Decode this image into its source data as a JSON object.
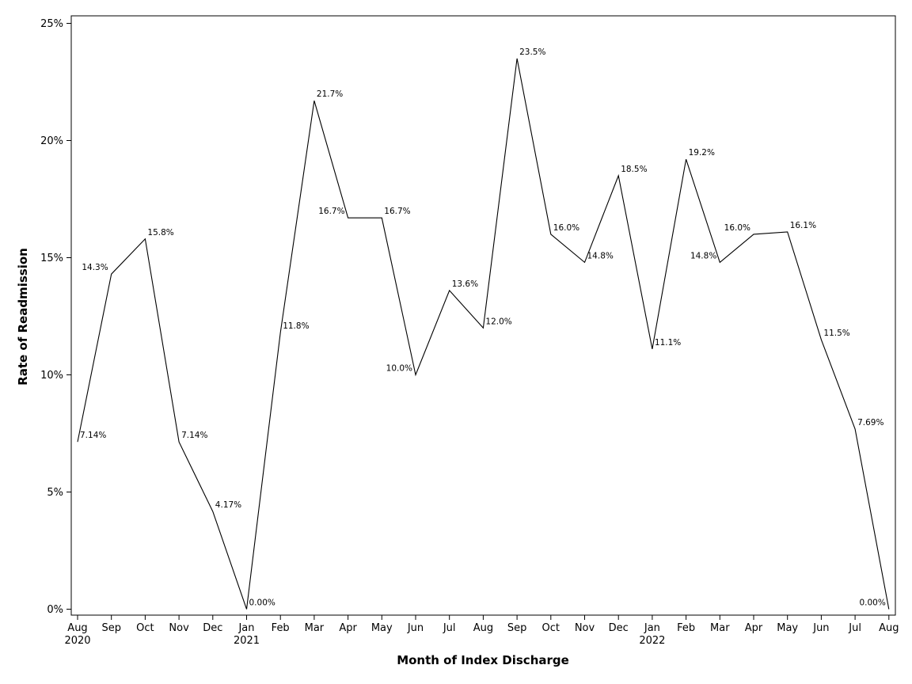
{
  "chart_data": {
    "type": "line",
    "xlabel": "Month of Index Discharge",
    "ylabel": "Rate of Readmission",
    "ylim": [
      0,
      25
    ],
    "y_ticks": [
      0,
      5,
      10,
      15,
      20,
      25
    ],
    "y_tick_labels": [
      "0%",
      "5%",
      "10%",
      "15%",
      "20%",
      "25%"
    ],
    "grid": false,
    "legend": "none",
    "line_color": "#000000",
    "categories": [
      "Aug 2020",
      "Sep 2020",
      "Oct 2020",
      "Nov 2020",
      "Dec 2020",
      "Jan 2021",
      "Feb 2021",
      "Mar 2021",
      "Apr 2021",
      "May 2021",
      "Jun 2021",
      "Jul 2021",
      "Aug 2021",
      "Sep 2021",
      "Oct 2021",
      "Nov 2021",
      "Dec 2021",
      "Jan 2022",
      "Feb 2022",
      "Mar 2022",
      "Apr 2022",
      "May 2022",
      "Jun 2022",
      "Jul 2022",
      "Aug 2022"
    ],
    "tick_month_labels": [
      "Aug",
      "Sep",
      "Oct",
      "Nov",
      "Dec",
      "Jan",
      "Feb",
      "Mar",
      "Apr",
      "May",
      "Jun",
      "Jul",
      "Aug",
      "Sep",
      "Oct",
      "Nov",
      "Dec",
      "Jan",
      "Feb",
      "Mar",
      "Apr",
      "May",
      "Jun",
      "Jul",
      "Aug"
    ],
    "tick_year_labels": [
      "2020",
      "",
      "",
      "",
      "",
      "2021",
      "",
      "",
      "",
      "",
      "",
      "",
      "",
      "",
      "",
      "",
      "",
      "2022",
      "",
      "",
      "",
      "",
      "",
      "",
      ""
    ],
    "values": [
      7.14,
      14.3,
      15.8,
      7.14,
      4.17,
      0.0,
      11.8,
      21.7,
      16.7,
      16.7,
      10.0,
      13.6,
      12.0,
      23.5,
      16.0,
      14.8,
      18.5,
      11.1,
      19.2,
      14.8,
      16.0,
      16.1,
      11.5,
      7.69,
      0.0
    ],
    "data_labels": [
      "7.14%",
      "14.3%",
      "15.8%",
      "7.14%",
      "4.17%",
      "0.00%",
      "11.8%",
      "21.7%",
      "16.7%",
      "16.7%",
      "10.0%",
      "13.6%",
      "12.0%",
      "23.5%",
      "16.0%",
      "14.8%",
      "18.5%",
      "11.1%",
      "19.2%",
      "14.8%",
      "16.0%",
      "16.1%",
      "11.5%",
      "7.69%",
      "0.00%"
    ],
    "label_positions": [
      "right",
      "left",
      "right",
      "right",
      "right",
      "right",
      "right",
      "right",
      "left",
      "right",
      "left",
      "right",
      "right",
      "right",
      "right",
      "right",
      "right",
      "right",
      "right",
      "left",
      "left",
      "right",
      "right",
      "right",
      "left"
    ]
  }
}
